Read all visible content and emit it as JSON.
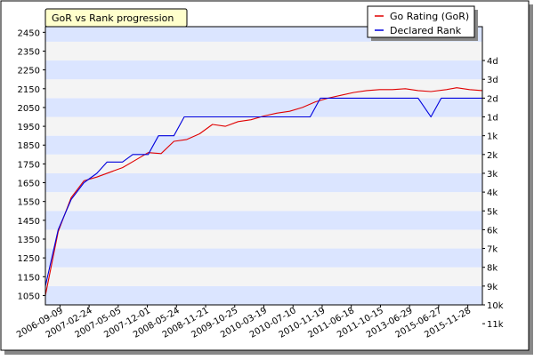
{
  "colors": {
    "background": "#ffffff",
    "plot_band_light": "#f4f4f4",
    "plot_band_blue": "#dbe5ff",
    "title_bg": "#ffffcc",
    "gor_line": "#e00000",
    "rank_line": "#0000dd"
  },
  "chart_data": {
    "type": "line",
    "title": "GoR vs Rank progression",
    "x": [
      "2006-09-09",
      "2007-02-24",
      "2007-05-05",
      "2007-12-01",
      "2008-05-24",
      "2008-11-21",
      "2009-10-25",
      "2010-03-19",
      "2010-07-10",
      "2010-11-19",
      "2011-06-18",
      "2011-10-15",
      "2013-06-29",
      "2015-06-27",
      "2015-11-28"
    ],
    "left_axis": {
      "ylim": [
        1000,
        2480
      ],
      "ticks": [
        1050,
        1150,
        1250,
        1350,
        1450,
        1550,
        1650,
        1750,
        1850,
        1950,
        2050,
        2150,
        2250,
        2350,
        2450
      ]
    },
    "right_axis": {
      "tick_labels": [
        "4d",
        "3d",
        "2d",
        "1d",
        "1k",
        "2k",
        "3k",
        "4k",
        "5k",
        "6k",
        "7k",
        "8k",
        "9k",
        "10k",
        "11k"
      ],
      "tick_values": [
        2300,
        2200,
        2100,
        2000,
        1900,
        1800,
        1700,
        1600,
        1500,
        1400,
        1300,
        1200,
        1100,
        1000,
        900
      ]
    },
    "series": [
      {
        "name": "Go Rating (GoR)",
        "color": "#e00000",
        "points": [
          [
            0,
            1050
          ],
          [
            0.5,
            1390
          ],
          [
            1,
            1570
          ],
          [
            1.5,
            1660
          ],
          [
            2,
            1680
          ],
          [
            2.6,
            1710
          ],
          [
            3,
            1730
          ],
          [
            3.5,
            1770
          ],
          [
            4,
            1810
          ],
          [
            4.5,
            1805
          ],
          [
            5,
            1870
          ],
          [
            5.5,
            1880
          ],
          [
            6,
            1910
          ],
          [
            6.5,
            1960
          ],
          [
            7,
            1950
          ],
          [
            7.5,
            1975
          ],
          [
            8,
            1985
          ],
          [
            8.5,
            2005
          ],
          [
            9,
            2020
          ],
          [
            9.5,
            2030
          ],
          [
            10,
            2050
          ],
          [
            10.5,
            2080
          ],
          [
            11,
            2100
          ],
          [
            11.5,
            2115
          ],
          [
            12,
            2130
          ],
          [
            12.5,
            2140
          ],
          [
            13,
            2145
          ],
          [
            13.5,
            2145
          ],
          [
            14,
            2150
          ],
          [
            14.5,
            2140
          ],
          [
            15,
            2135
          ],
          [
            15.6,
            2145
          ],
          [
            16,
            2155
          ],
          [
            16.5,
            2145
          ],
          [
            17,
            2140
          ]
        ]
      },
      {
        "name": "Declared Rank",
        "color": "#0000dd",
        "points": [
          [
            0,
            1100
          ],
          [
            0.5,
            1400
          ],
          [
            1,
            1560
          ],
          [
            1.5,
            1650
          ],
          [
            2,
            1700
          ],
          [
            2.4,
            1760
          ],
          [
            3,
            1760
          ],
          [
            3.4,
            1800
          ],
          [
            4,
            1800
          ],
          [
            4.4,
            1900
          ],
          [
            5,
            1900
          ],
          [
            5.4,
            2000
          ],
          [
            6,
            2000
          ],
          [
            6.5,
            2000
          ],
          [
            7,
            2000
          ],
          [
            7.5,
            2000
          ],
          [
            8,
            2000
          ],
          [
            8.5,
            2000
          ],
          [
            9,
            2000
          ],
          [
            9.5,
            2000
          ],
          [
            10,
            2000
          ],
          [
            10.3,
            2000
          ],
          [
            10.7,
            2100
          ],
          [
            11,
            2100
          ],
          [
            11.5,
            2100
          ],
          [
            12,
            2100
          ],
          [
            12.5,
            2100
          ],
          [
            13,
            2100
          ],
          [
            13.5,
            2100
          ],
          [
            14,
            2100
          ],
          [
            14.5,
            2100
          ],
          [
            15,
            2000
          ],
          [
            15.4,
            2100
          ],
          [
            16,
            2100
          ],
          [
            16.5,
            2100
          ],
          [
            17,
            2100
          ]
        ]
      }
    ],
    "legend": {
      "placement": "top-right",
      "entries": [
        "Go Rating (GoR)",
        "Declared Rank"
      ]
    },
    "grid": true
  }
}
